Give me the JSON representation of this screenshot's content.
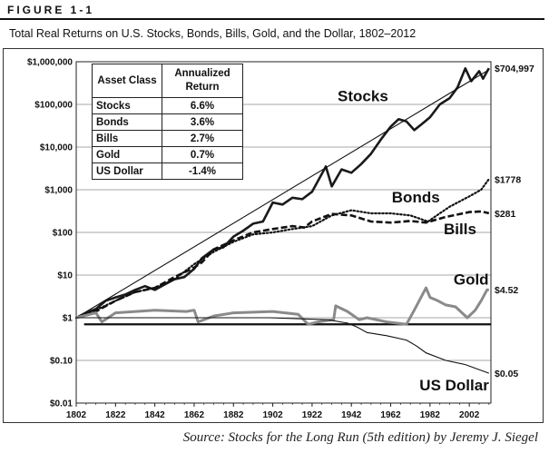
{
  "header": {
    "figure_label": "FIGURE 1-1",
    "title": "Total Real Returns on U.S. Stocks, Bonds, Bills, Gold, and the Dollar, 1802–2012"
  },
  "source": "Source: Stocks for the Long Run (5th edition) by Jeremy J. Siegel",
  "table": {
    "headers": [
      "Asset Class",
      "Annualized Return"
    ],
    "rows": [
      {
        "asset": "Stocks",
        "ret": "6.6%"
      },
      {
        "asset": "Bonds",
        "ret": "3.6%"
      },
      {
        "asset": "Bills",
        "ret": "2.7%"
      },
      {
        "asset": "Gold",
        "ret": "0.7%"
      },
      {
        "asset": "US Dollar",
        "ret": "-1.4%"
      }
    ]
  },
  "chart_data": {
    "type": "line",
    "title": "Total Real Returns on U.S. Stocks, Bonds, Bills, Gold, and the Dollar, 1802–2012",
    "y_scale": "log",
    "ylim": [
      0.01,
      1000000
    ],
    "xlim": [
      1802,
      2013
    ],
    "x_ticks": [
      "1802",
      "1822",
      "1842",
      "1862",
      "1882",
      "1902",
      "1922",
      "1942",
      "1962",
      "1982",
      "2002"
    ],
    "y_ticks": [
      {
        "value": 1000000,
        "label": "$1,000,000"
      },
      {
        "value": 100000,
        "label": "$100,000"
      },
      {
        "value": 10000,
        "label": "$10,000"
      },
      {
        "value": 1000,
        "label": "$1,000"
      },
      {
        "value": 100,
        "label": "$100"
      },
      {
        "value": 10,
        "label": "$10"
      },
      {
        "value": 1,
        "label": "$1"
      },
      {
        "value": 0.1,
        "label": "$0.10"
      },
      {
        "value": 0.01,
        "label": "$0.01"
      }
    ],
    "grid": true,
    "series": [
      {
        "name": "Stocks",
        "end_label": "$704,997",
        "style": "thick",
        "points": [
          [
            1802,
            1
          ],
          [
            1807,
            1.3
          ],
          [
            1812,
            1.6
          ],
          [
            1817,
            2.5
          ],
          [
            1822,
            3
          ],
          [
            1827,
            3.5
          ],
          [
            1832,
            4.5
          ],
          [
            1837,
            5.5
          ],
          [
            1842,
            4.5
          ],
          [
            1847,
            6
          ],
          [
            1852,
            8
          ],
          [
            1857,
            9
          ],
          [
            1862,
            14
          ],
          [
            1866,
            25
          ],
          [
            1872,
            40
          ],
          [
            1877,
            45
          ],
          [
            1882,
            80
          ],
          [
            1887,
            110
          ],
          [
            1892,
            160
          ],
          [
            1897,
            180
          ],
          [
            1902,
            500
          ],
          [
            1907,
            450
          ],
          [
            1912,
            650
          ],
          [
            1917,
            600
          ],
          [
            1922,
            900
          ],
          [
            1929,
            3500
          ],
          [
            1932,
            1200
          ],
          [
            1937,
            3000
          ],
          [
            1942,
            2500
          ],
          [
            1947,
            4000
          ],
          [
            1952,
            7000
          ],
          [
            1957,
            15000
          ],
          [
            1962,
            30000
          ],
          [
            1966,
            45000
          ],
          [
            1970,
            40000
          ],
          [
            1974,
            25000
          ],
          [
            1978,
            35000
          ],
          [
            1982,
            50000
          ],
          [
            1987,
            100000
          ],
          [
            1992,
            140000
          ],
          [
            1996,
            250000
          ],
          [
            2000,
            700000
          ],
          [
            2003,
            350000
          ],
          [
            2007,
            600000
          ],
          [
            2009,
            400000
          ],
          [
            2012,
            704997
          ]
        ]
      },
      {
        "name": "Stocks trend",
        "style": "thin",
        "points": [
          [
            1802,
            1
          ],
          [
            2012,
            650000
          ]
        ]
      },
      {
        "name": "Bonds",
        "end_label": "$1778",
        "style": "dotted",
        "points": [
          [
            1802,
            1
          ],
          [
            1812,
            1.5
          ],
          [
            1822,
            2.5
          ],
          [
            1832,
            4
          ],
          [
            1842,
            5
          ],
          [
            1852,
            8
          ],
          [
            1862,
            18
          ],
          [
            1872,
            35
          ],
          [
            1882,
            60
          ],
          [
            1892,
            90
          ],
          [
            1902,
            100
          ],
          [
            1912,
            120
          ],
          [
            1922,
            140
          ],
          [
            1932,
            250
          ],
          [
            1942,
            330
          ],
          [
            1952,
            280
          ],
          [
            1962,
            280
          ],
          [
            1972,
            250
          ],
          [
            1981,
            180
          ],
          [
            1987,
            280
          ],
          [
            1992,
            400
          ],
          [
            2002,
            700
          ],
          [
            2008,
            1000
          ],
          [
            2012,
            1778
          ]
        ]
      },
      {
        "name": "Bills",
        "end_label": "$281",
        "style": "dashed",
        "points": [
          [
            1802,
            1
          ],
          [
            1812,
            1.4
          ],
          [
            1822,
            2.5
          ],
          [
            1832,
            4
          ],
          [
            1842,
            5
          ],
          [
            1852,
            9
          ],
          [
            1862,
            15
          ],
          [
            1866,
            20
          ],
          [
            1872,
            40
          ],
          [
            1882,
            65
          ],
          [
            1892,
            100
          ],
          [
            1902,
            120
          ],
          [
            1912,
            140
          ],
          [
            1918,
            130
          ],
          [
            1922,
            180
          ],
          [
            1932,
            270
          ],
          [
            1942,
            250
          ],
          [
            1952,
            180
          ],
          [
            1962,
            170
          ],
          [
            1972,
            185
          ],
          [
            1980,
            170
          ],
          [
            1990,
            230
          ],
          [
            2002,
            300
          ],
          [
            2008,
            310
          ],
          [
            2012,
            281
          ]
        ]
      },
      {
        "name": "Gold",
        "end_label": "$4.52",
        "style": "gray",
        "points": [
          [
            1802,
            1
          ],
          [
            1812,
            1.3
          ],
          [
            1815,
            0.8
          ],
          [
            1822,
            1.3
          ],
          [
            1842,
            1.5
          ],
          [
            1858,
            1.4
          ],
          [
            1862,
            1.5
          ],
          [
            1864,
            0.8
          ],
          [
            1872,
            1.1
          ],
          [
            1882,
            1.3
          ],
          [
            1902,
            1.4
          ],
          [
            1915,
            1.2
          ],
          [
            1920,
            0.7
          ],
          [
            1925,
            0.8
          ],
          [
            1933,
            0.9
          ],
          [
            1934,
            1.9
          ],
          [
            1940,
            1.4
          ],
          [
            1946,
            0.9
          ],
          [
            1950,
            1
          ],
          [
            1960,
            0.8
          ],
          [
            1970,
            0.7
          ],
          [
            1974,
            1.5
          ],
          [
            1980,
            5
          ],
          [
            1982,
            3
          ],
          [
            1986,
            2.5
          ],
          [
            1990,
            2
          ],
          [
            1995,
            1.8
          ],
          [
            2001,
            1
          ],
          [
            2005,
            1.5
          ],
          [
            2008,
            2.5
          ],
          [
            2011,
            4.5
          ],
          [
            2012,
            4.52
          ]
        ]
      },
      {
        "name": "US Dollar",
        "end_label": "$0.05",
        "style": "thin",
        "points": [
          [
            1802,
            1
          ],
          [
            1820,
            1
          ],
          [
            1860,
            1
          ],
          [
            1900,
            1
          ],
          [
            1930,
            0.9
          ],
          [
            1940,
            0.75
          ],
          [
            1945,
            0.6
          ],
          [
            1950,
            0.45
          ],
          [
            1960,
            0.38
          ],
          [
            1970,
            0.3
          ],
          [
            1975,
            0.22
          ],
          [
            1980,
            0.15
          ],
          [
            1990,
            0.1
          ],
          [
            2000,
            0.08
          ],
          [
            2012,
            0.05
          ]
        ]
      }
    ],
    "series_labels": [
      "Stocks",
      "Bonds",
      "Bills",
      "Gold",
      "US Dollar"
    ],
    "reference_line": 0.7
  }
}
